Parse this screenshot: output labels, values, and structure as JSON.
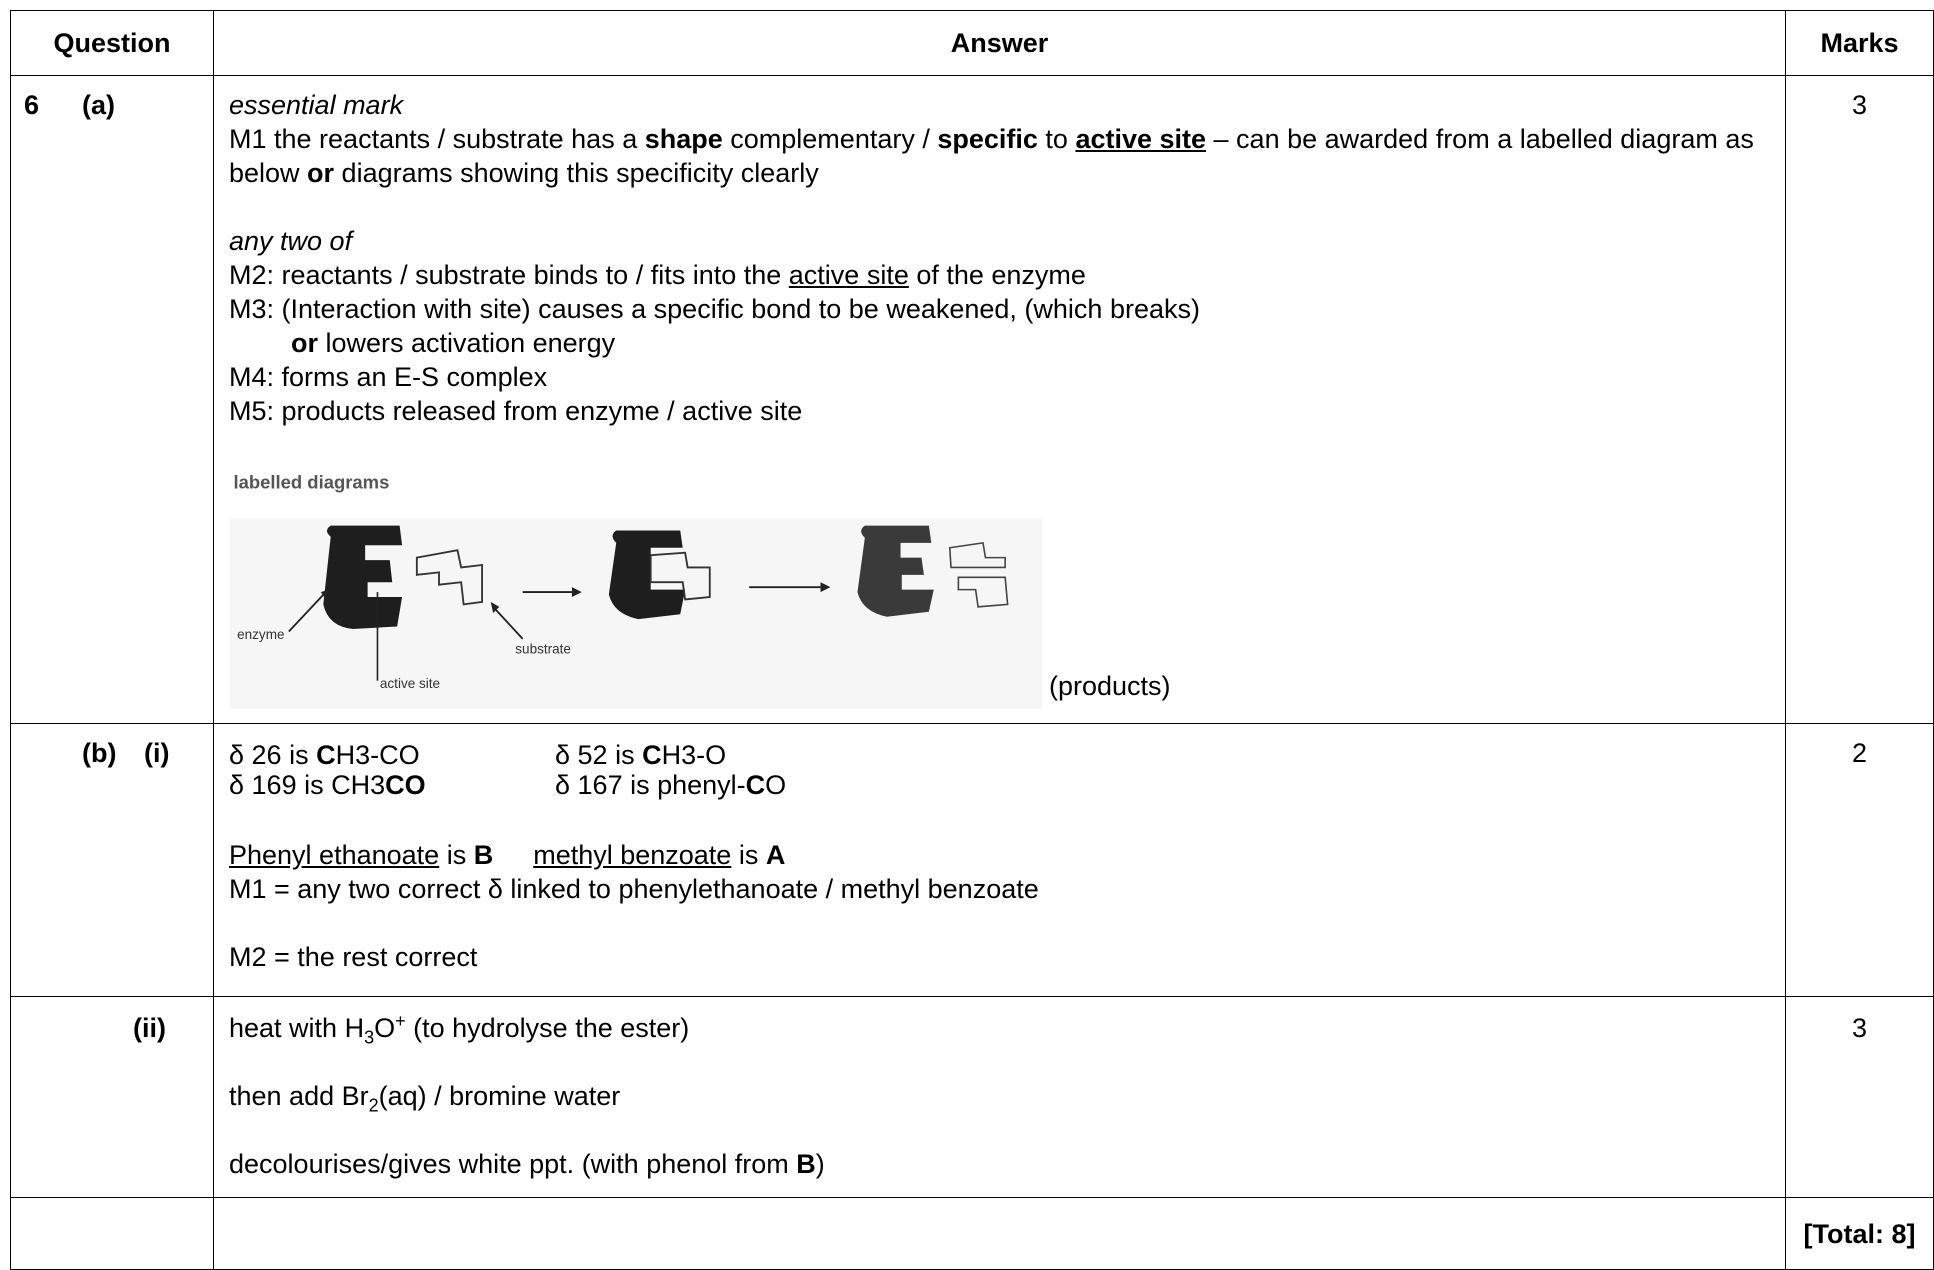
{
  "header": {
    "question": "Question",
    "answer": "Answer",
    "marks": "Marks"
  },
  "rows": [
    {
      "number": "6",
      "part": "(a)",
      "answer": [
        [
          "essential mark"
        ],
        [
          "M1 the reactants / substrate has a ",
          "shape",
          " complementary / ",
          "specific",
          " to ",
          "active site",
          " – can be awarded from a labelled diagram as below ",
          "or",
          " diagrams showing this specificity clearly"
        ],
        [
          "any two of"
        ],
        [
          "M2: reactants / substrate binds to / fits into the ",
          "active site",
          " of the enzyme"
        ],
        [
          "M3: (Interaction with site) causes a specific bond to be weakened, (which breaks)"
        ],
        [
          "or",
          " lowers activation energy"
        ],
        [
          "M4: forms an E-S complex"
        ],
        [
          "M5: products released from enzyme / active site"
        ]
      ],
      "diagram": {
        "title": "labelled diagrams",
        "enzyme": "enzyme",
        "active_site": "active site",
        "substrate": "substrate",
        "products": "(products)"
      },
      "marks": "3"
    },
    {
      "part": "(b)",
      "subpart": "(i)",
      "shifts": [
        [
          "δ 26 is ",
          "C",
          "H3-CO"
        ],
        [
          "δ 52 is ",
          "C",
          "H3-O"
        ],
        [
          "δ 169 is CH3",
          "CO"
        ],
        [
          "δ 167 is phenyl-",
          "C",
          "O"
        ]
      ],
      "answer": [
        [
          "Phenyl ethanoate",
          " is ",
          "B",
          "methyl benzoate",
          " is ",
          "A"
        ],
        [
          "M1 = any two correct δ linked to phenylethanoate / methyl benzoate"
        ],
        [
          "M2 = the rest correct"
        ]
      ],
      "marks": "2"
    },
    {
      "subpart": "(ii)",
      "answer": [
        [
          "heat with H",
          "3",
          "O",
          "+",
          " (to hydrolyse the ester)"
        ],
        [
          "then add Br",
          "2",
          "(aq) / bromine water"
        ],
        [
          "decolourises/gives white ppt. (with phenol from ",
          "B",
          ")"
        ]
      ],
      "marks": "3"
    }
  ],
  "total": "[Total: 8]"
}
